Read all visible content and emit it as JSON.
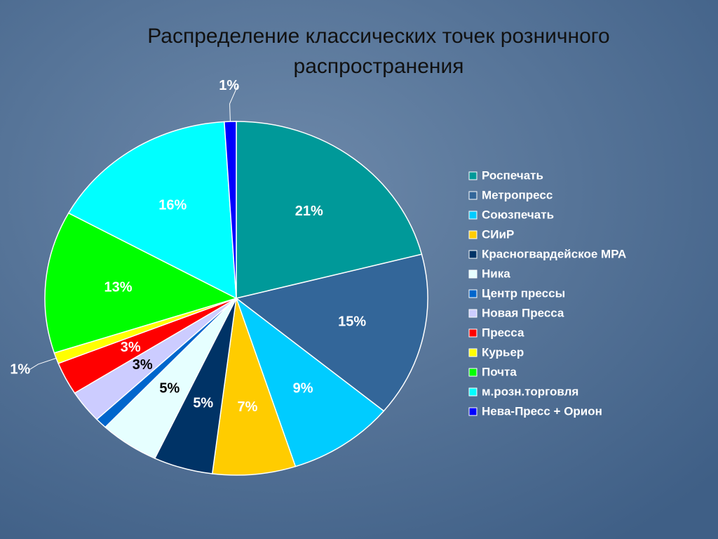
{
  "chart_data": {
    "type": "pie",
    "title": "Распределение классических точек розничного распространения",
    "categories": [
      "Роспечать",
      "Метропресс",
      "Союзпечать",
      "СИиР",
      "Красногвардейское МРА",
      "Ника",
      "Центр прессы",
      "Новая Пресса",
      "Пресса",
      "Курьер",
      "Почта",
      "м.розн.торговля",
      "Нева-Пресс + Орион"
    ],
    "values": [
      21,
      15,
      9,
      7,
      5,
      5,
      1,
      3,
      3,
      1,
      13,
      16,
      1
    ],
    "value_labels": [
      "21%",
      "15%",
      "9%",
      "7%",
      "5%",
      "5%",
      null,
      "3%",
      "3%",
      "1%",
      "13%",
      "16%",
      "1%"
    ],
    "colors": [
      "#009999",
      "#336699",
      "#00ccff",
      "#ffcc00",
      "#003366",
      "#e6ffff",
      "#0066cc",
      "#ccccff",
      "#ff0000",
      "#ffff00",
      "#00ff00",
      "#00ffff",
      "#0000ff"
    ],
    "legend": "right"
  }
}
